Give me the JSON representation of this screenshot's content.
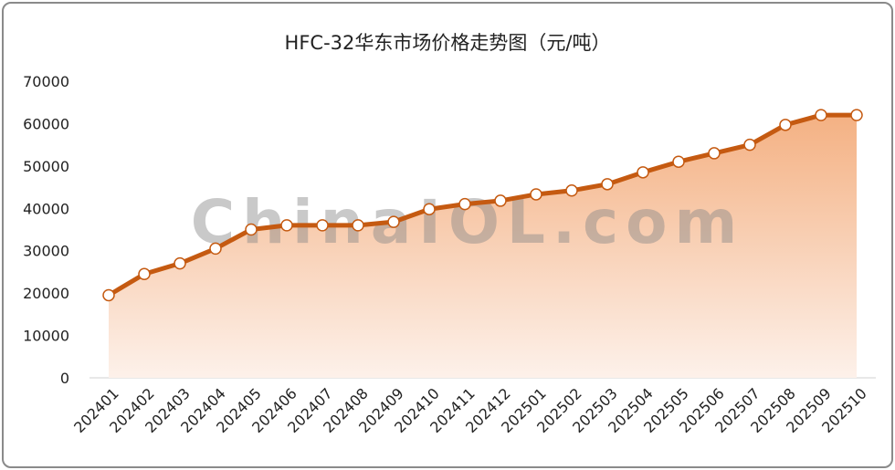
{
  "chart_data": {
    "type": "area",
    "title": "HFC-32华东市场价格走势图（元/吨）",
    "xlabel": "",
    "ylabel": "",
    "ylim": [
      0,
      70000
    ],
    "yticks": [
      0,
      10000,
      20000,
      30000,
      40000,
      50000,
      60000,
      70000
    ],
    "grid": false,
    "legend": "none",
    "categories": [
      "202401",
      "202402",
      "202403",
      "202404",
      "202405",
      "202406",
      "202407",
      "202408",
      "202409",
      "202410",
      "202411",
      "202412",
      "202501",
      "202502",
      "202503",
      "202504",
      "202505",
      "202506",
      "202507",
      "202508",
      "202509",
      "202510"
    ],
    "values": [
      19500,
      24500,
      27000,
      30500,
      35000,
      36000,
      36000,
      36000,
      36800,
      39800,
      41000,
      41800,
      43300,
      44200,
      45700,
      48500,
      51000,
      53000,
      55000,
      59700,
      62000,
      62000
    ],
    "colors": {
      "line": "#c55a11",
      "fill_top": "#f4b183",
      "fill_bottom": "#fdf1ea",
      "marker_fill": "#ffffff"
    }
  },
  "watermark": "ChinaIOL.com"
}
